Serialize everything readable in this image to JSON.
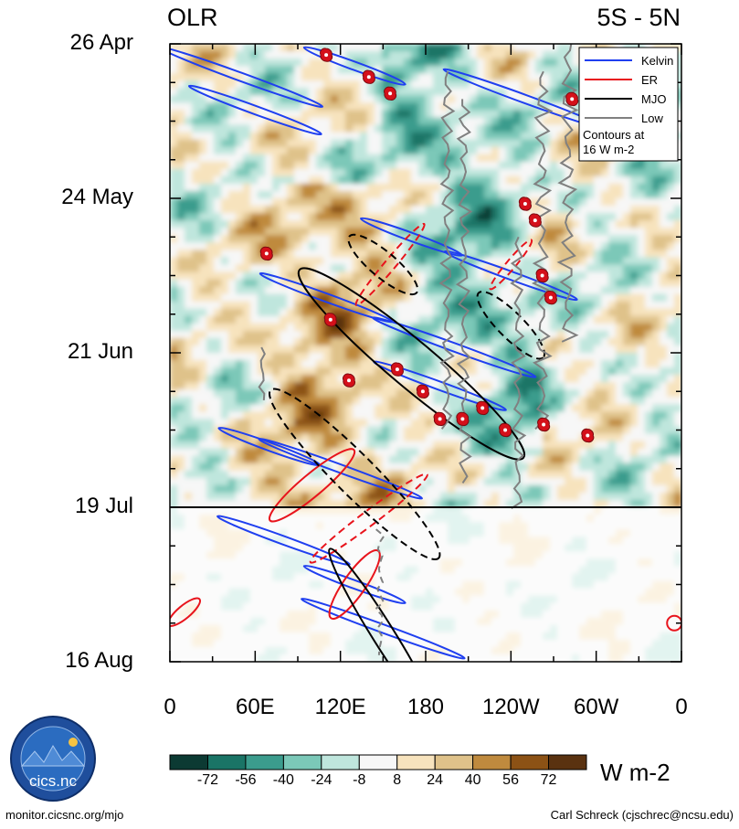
{
  "header": {
    "variable": "OLR",
    "latitude_band": "5S - 5N"
  },
  "chart_data": {
    "type": "heatmap",
    "title": "OLR",
    "subtitle": "5S - 5N",
    "y_ticks": [
      "26 Apr",
      "24 May",
      "21 Jun",
      "19 Jul",
      "16 Aug"
    ],
    "x_ticks": [
      "0",
      "60E",
      "120E",
      "180",
      "120W",
      "60W",
      "0"
    ],
    "x_range_deg_east": [
      0,
      360
    ],
    "y_range_days": [
      0,
      112
    ],
    "observation_end_label": "19 Jul",
    "colorbar": {
      "labels": [
        "-72",
        "-56",
        "-40",
        "-24",
        "-8",
        "8",
        "24",
        "40",
        "56",
        "72"
      ],
      "bounds": [
        -88,
        -72,
        -56,
        -40,
        -24,
        -8,
        8,
        24,
        40,
        56,
        72,
        88
      ],
      "colors": [
        "#0c3a33",
        "#1a7466",
        "#3b9c8d",
        "#7bc8b8",
        "#bfe6dd",
        "#f7f7f7",
        "#f7e3bd",
        "#dfc28a",
        "#bf8a3e",
        "#8c5215",
        "#5a3210"
      ],
      "units": "W m-2"
    },
    "legend": {
      "entries": [
        {
          "label": "Kelvin",
          "color": "#1f3ff0"
        },
        {
          "label": "ER",
          "color": "#e8141c"
        },
        {
          "label": "MJO",
          "color": "#000000"
        },
        {
          "label": "Low",
          "color": "#808080"
        }
      ],
      "note_line1": "Contours at",
      "note_line2": "16 W m-2",
      "position": "top-right"
    },
    "tropical_cyclones": [
      {
        "lon": 110,
        "day": 2
      },
      {
        "lon": 140,
        "day": 6
      },
      {
        "lon": 155,
        "day": 9
      },
      {
        "lon": 283,
        "day": 10
      },
      {
        "lon": 250,
        "day": 29
      },
      {
        "lon": 257,
        "day": 32
      },
      {
        "lon": 68,
        "day": 38
      },
      {
        "lon": 262,
        "day": 42
      },
      {
        "lon": 268,
        "day": 46
      },
      {
        "lon": 113,
        "day": 50
      },
      {
        "lon": 160,
        "day": 59
      },
      {
        "lon": 126,
        "day": 61
      },
      {
        "lon": 178,
        "day": 63
      },
      {
        "lon": 220,
        "day": 66
      },
      {
        "lon": 190,
        "day": 68
      },
      {
        "lon": 206,
        "day": 68
      },
      {
        "lon": 236,
        "day": 70
      },
      {
        "lon": 263,
        "day": 69
      },
      {
        "lon": 294,
        "day": 71
      }
    ]
  },
  "footer": {
    "logo_text": "cics.nc",
    "left_url": "monitor.cicsnc.org/mjo",
    "author": "Carl Schreck (cjschrec@ncsu.edu)"
  }
}
